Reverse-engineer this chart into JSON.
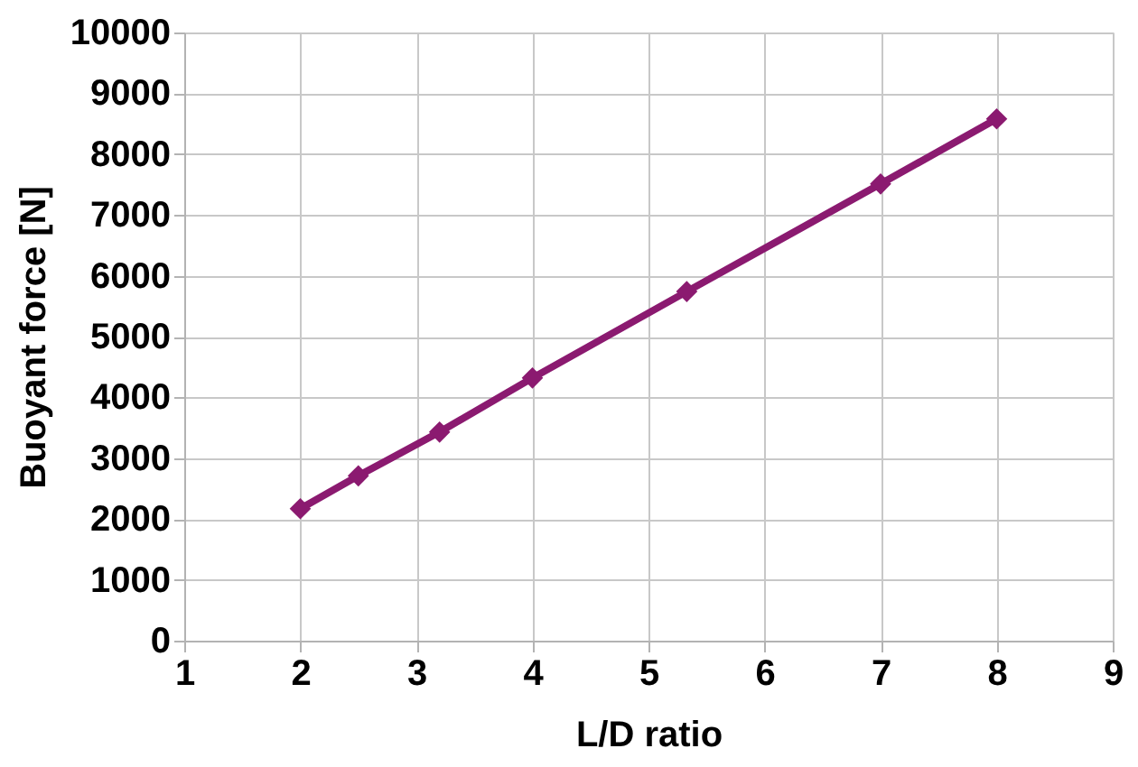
{
  "chart_data": {
    "type": "line",
    "xlabel": "L/D ratio",
    "ylabel": "Buoyant force [N]",
    "x": [
      2,
      2.5,
      3.2,
      4,
      5.33,
      7,
      8
    ],
    "series": [
      {
        "color": "#8b1a70",
        "values": [
          2170,
          2710,
          3430,
          4320,
          5740,
          7510,
          8580
        ]
      }
    ],
    "xlim": [
      1,
      9
    ],
    "xticks": [
      1,
      2,
      3,
      4,
      5,
      6,
      7,
      8,
      9
    ],
    "ylim": [
      0,
      10000
    ],
    "yticks": [
      0,
      1000,
      2000,
      3000,
      4000,
      5000,
      6000,
      7000,
      8000,
      9000,
      10000
    ],
    "grid": true,
    "marker": "diamond",
    "line_style": "solid"
  }
}
